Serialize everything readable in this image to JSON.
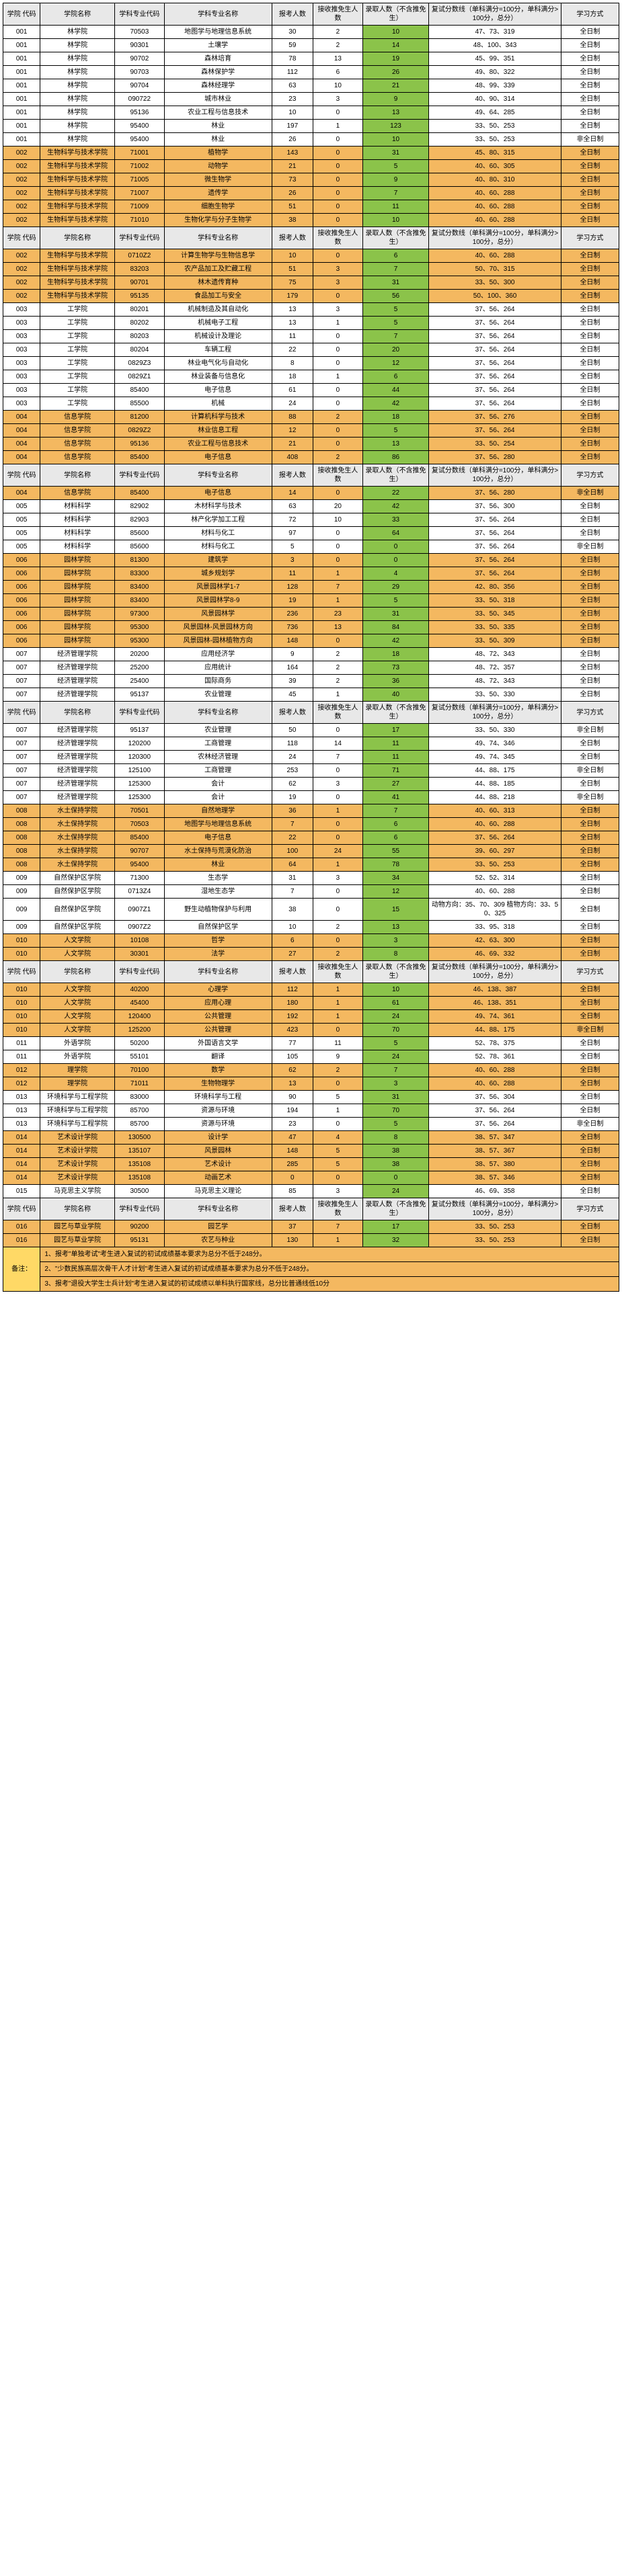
{
  "headers": {
    "col1": "学院 代码",
    "col2": "学院名称",
    "col3": "学科专业代码",
    "col4": "学科专业名称",
    "col5": "报考人数",
    "col6": "接收推免生人数",
    "col7": "录取人数（不含推免生）",
    "col8": "复试分数线（单科满分=100分，单科满分>100分，总分）",
    "col9": "学习方式"
  },
  "rows": [
    [
      "001",
      "林学院",
      "70503",
      "地图学与地理信息系统",
      "30",
      "2",
      "10",
      "47、73、319",
      "全日制",
      "",
      "g",
      ""
    ],
    [
      "001",
      "林学院",
      "90301",
      "土壤学",
      "59",
      "2",
      "14",
      "48、100、343",
      "全日制",
      "",
      "g",
      ""
    ],
    [
      "001",
      "林学院",
      "90702",
      "森林培育",
      "78",
      "13",
      "19",
      "45、99、351",
      "全日制",
      "",
      "g",
      ""
    ],
    [
      "001",
      "林学院",
      "90703",
      "森林保护学",
      "112",
      "6",
      "26",
      "49、80、322",
      "全日制",
      "",
      "g",
      ""
    ],
    [
      "001",
      "林学院",
      "90704",
      "森林经理学",
      "63",
      "10",
      "21",
      "48、99、339",
      "全日制",
      "",
      "g",
      ""
    ],
    [
      "001",
      "林学院",
      "090722",
      "城市林业",
      "23",
      "3",
      "9",
      "40、90、314",
      "全日制",
      "",
      "g",
      ""
    ],
    [
      "001",
      "林学院",
      "95136",
      "农业工程与信息技术",
      "10",
      "0",
      "13",
      "49、64、285",
      "全日制",
      "",
      "g",
      ""
    ],
    [
      "001",
      "林学院",
      "95400",
      "林业",
      "197",
      "1",
      "123",
      "33、50、253",
      "全日制",
      "",
      "g",
      ""
    ],
    [
      "001",
      "林学院",
      "95400",
      "林业",
      "26",
      "0",
      "10",
      "33、50、253",
      "非全日制",
      "",
      "g",
      ""
    ],
    [
      "002",
      "生物科学与技术学院",
      "71001",
      "植物学",
      "143",
      "0",
      "31",
      "45、80、315",
      "全日制",
      "o",
      "g",
      "o"
    ],
    [
      "002",
      "生物科学与技术学院",
      "71002",
      "动物学",
      "21",
      "0",
      "5",
      "40、60、305",
      "全日制",
      "o",
      "g",
      "o"
    ],
    [
      "002",
      "生物科学与技术学院",
      "71005",
      "微生物学",
      "73",
      "0",
      "9",
      "40、80、310",
      "全日制",
      "o",
      "g",
      "o"
    ],
    [
      "002",
      "生物科学与技术学院",
      "71007",
      "遗传学",
      "26",
      "0",
      "7",
      "40、60、288",
      "全日制",
      "o",
      "g",
      "o"
    ],
    [
      "002",
      "生物科学与技术学院",
      "71009",
      "细胞生物学",
      "51",
      "0",
      "11",
      "40、60、288",
      "全日制",
      "o",
      "g",
      "o"
    ],
    [
      "002",
      "生物科学与技术学院",
      "71010",
      "生物化学与分子生物学",
      "38",
      "0",
      "10",
      "40、60、288",
      "全日制",
      "o",
      "g",
      "o"
    ],
    [
      "HEADER"
    ],
    [
      "002",
      "生物科学与技术学院",
      "0710Z2",
      "计算生物学与生物信息学",
      "10",
      "0",
      "6",
      "40、60、288",
      "全日制",
      "o",
      "g",
      "o"
    ],
    [
      "002",
      "生物科学与技术学院",
      "83203",
      "农产品加工及贮藏工程",
      "51",
      "3",
      "7",
      "50、70、315",
      "全日制",
      "o",
      "g",
      "o"
    ],
    [
      "002",
      "生物科学与技术学院",
      "90701",
      "林木遗传育种",
      "75",
      "3",
      "31",
      "33、50、300",
      "全日制",
      "o",
      "g",
      "o"
    ],
    [
      "002",
      "生物科学与技术学院",
      "95135",
      "食品加工与安全",
      "179",
      "0",
      "56",
      "50、100、360",
      "全日制",
      "o",
      "g",
      "o"
    ],
    [
      "003",
      "工学院",
      "80201",
      "机械制造及其自动化",
      "13",
      "3",
      "5",
      "37、56、264",
      "全日制",
      "",
      "g",
      ""
    ],
    [
      "003",
      "工学院",
      "80202",
      "机械电子工程",
      "13",
      "1",
      "5",
      "37、56、264",
      "全日制",
      "",
      "g",
      ""
    ],
    [
      "003",
      "工学院",
      "80203",
      "机械设计及理论",
      "11",
      "0",
      "7",
      "37、56、264",
      "全日制",
      "",
      "g",
      ""
    ],
    [
      "003",
      "工学院",
      "80204",
      "车辆工程",
      "22",
      "0",
      "20",
      "37、56、264",
      "全日制",
      "",
      "g",
      ""
    ],
    [
      "003",
      "工学院",
      "0829Z3",
      "林业电气化与自动化",
      "8",
      "0",
      "12",
      "37、56、264",
      "全日制",
      "",
      "g",
      ""
    ],
    [
      "003",
      "工学院",
      "0829Z1",
      "林业装备与信息化",
      "18",
      "1",
      "6",
      "37、56、264",
      "全日制",
      "",
      "g",
      ""
    ],
    [
      "003",
      "工学院",
      "85400",
      "电子信息",
      "61",
      "0",
      "44",
      "37、56、264",
      "全日制",
      "",
      "g",
      ""
    ],
    [
      "003",
      "工学院",
      "85500",
      "机械",
      "24",
      "0",
      "42",
      "37、56、264",
      "全日制",
      "",
      "g",
      ""
    ],
    [
      "004",
      "信息学院",
      "81200",
      "计算机科学与技术",
      "88",
      "2",
      "18",
      "37、56、276",
      "全日制",
      "o",
      "g",
      "o"
    ],
    [
      "004",
      "信息学院",
      "0829Z2",
      "林业信息工程",
      "12",
      "0",
      "5",
      "37、56、264",
      "全日制",
      "o",
      "g",
      "o"
    ],
    [
      "004",
      "信息学院",
      "95136",
      "农业工程与信息技术",
      "21",
      "0",
      "13",
      "33、50、254",
      "全日制",
      "o",
      "g",
      "o"
    ],
    [
      "004",
      "信息学院",
      "85400",
      "电子信息",
      "408",
      "2",
      "86",
      "37、56、280",
      "全日制",
      "o",
      "g",
      "o"
    ],
    [
      "HEADER"
    ],
    [
      "004",
      "信息学院",
      "85400",
      "电子信息",
      "14",
      "0",
      "22",
      "37、56、280",
      "非全日制",
      "o",
      "g",
      "o"
    ],
    [
      "005",
      "材料科学",
      "82902",
      "木材科学与技术",
      "63",
      "20",
      "42",
      "37、56、300",
      "全日制",
      "",
      "g",
      ""
    ],
    [
      "005",
      "材料科学",
      "82903",
      "林产化学加工工程",
      "72",
      "10",
      "33",
      "37、56、264",
      "全日制",
      "",
      "g",
      ""
    ],
    [
      "005",
      "材料科学",
      "85600",
      "材料与化工",
      "97",
      "0",
      "64",
      "37、56、264",
      "全日制",
      "",
      "g",
      ""
    ],
    [
      "005",
      "材料科学",
      "85600",
      "材料与化工",
      "5",
      "0",
      "0",
      "37、56、264",
      "非全日制",
      "",
      "g",
      ""
    ],
    [
      "006",
      "园林学院",
      "81300",
      "建筑学",
      "3",
      "0",
      "0",
      "37、56、264",
      "全日制",
      "o",
      "g",
      "o"
    ],
    [
      "006",
      "园林学院",
      "83300",
      "城乡规划学",
      "11",
      "1",
      "4",
      "37、56、264",
      "全日制",
      "o",
      "g",
      "o"
    ],
    [
      "006",
      "园林学院",
      "83400",
      "风景园林学1-7",
      "128",
      "7",
      "29",
      "42、80、356",
      "全日制",
      "o",
      "g",
      "o"
    ],
    [
      "006",
      "园林学院",
      "83400",
      "风景园林学8-9",
      "19",
      "1",
      "5",
      "33、50、318",
      "全日制",
      "o",
      "g",
      "o"
    ],
    [
      "006",
      "园林学院",
      "97300",
      "风景园林学",
      "236",
      "23",
      "31",
      "33、50、345",
      "全日制",
      "o",
      "g",
      "o"
    ],
    [
      "006",
      "园林学院",
      "95300",
      "风景园林-风景园林方向",
      "736",
      "13",
      "84",
      "33、50、335",
      "全日制",
      "o",
      "g",
      "o"
    ],
    [
      "006",
      "园林学院",
      "95300",
      "风景园林-园林植物方向",
      "148",
      "0",
      "42",
      "33、50、309",
      "全日制",
      "o",
      "g",
      "o"
    ],
    [
      "007",
      "经济管理学院",
      "20200",
      "应用经济学",
      "9",
      "2",
      "18",
      "48、72、343",
      "全日制",
      "",
      "g",
      ""
    ],
    [
      "007",
      "经济管理学院",
      "25200",
      "应用统计",
      "164",
      "2",
      "73",
      "48、72、357",
      "全日制",
      "",
      "g",
      ""
    ],
    [
      "007",
      "经济管理学院",
      "25400",
      "国际商务",
      "39",
      "2",
      "36",
      "48、72、343",
      "全日制",
      "",
      "g",
      ""
    ],
    [
      "007",
      "经济管理学院",
      "95137",
      "农业管理",
      "45",
      "1",
      "40",
      "33、50、330",
      "全日制",
      "",
      "g",
      ""
    ],
    [
      "HEADER"
    ],
    [
      "007",
      "经济管理学院",
      "95137",
      "农业管理",
      "50",
      "0",
      "17",
      "33、50、330",
      "非全日制",
      "",
      "g",
      ""
    ],
    [
      "007",
      "经济管理学院",
      "120200",
      "工商管理",
      "118",
      "14",
      "11",
      "49、74、346",
      "全日制",
      "",
      "g",
      ""
    ],
    [
      "007",
      "经济管理学院",
      "120300",
      "农林经济管理",
      "24",
      "7",
      "11",
      "49、74、345",
      "全日制",
      "",
      "g",
      ""
    ],
    [
      "007",
      "经济管理学院",
      "125100",
      "工商管理",
      "253",
      "0",
      "71",
      "44、88、175",
      "非全日制",
      "",
      "g",
      ""
    ],
    [
      "007",
      "经济管理学院",
      "125300",
      "会计",
      "62",
      "3",
      "27",
      "44、88、185",
      "全日制",
      "",
      "g",
      ""
    ],
    [
      "007",
      "经济管理学院",
      "125300",
      "会计",
      "19",
      "0",
      "41",
      "44、88、218",
      "非全日制",
      "",
      "g",
      ""
    ],
    [
      "008",
      "水土保持学院",
      "70501",
      "自然地理学",
      "36",
      "1",
      "7",
      "40、60、313",
      "全日制",
      "o",
      "g",
      "o"
    ],
    [
      "008",
      "水土保持学院",
      "70503",
      "地图学与地理信息系统",
      "7",
      "0",
      "6",
      "40、60、288",
      "全日制",
      "o",
      "g",
      "o"
    ],
    [
      "008",
      "水土保持学院",
      "85400",
      "电子信息",
      "22",
      "0",
      "6",
      "37、56、264",
      "全日制",
      "o",
      "g",
      "o"
    ],
    [
      "008",
      "水土保持学院",
      "90707",
      "水土保持与荒漠化防治",
      "100",
      "24",
      "55",
      "39、60、297",
      "全日制",
      "o",
      "g",
      "o"
    ],
    [
      "008",
      "水土保持学院",
      "95400",
      "林业",
      "64",
      "1",
      "78",
      "33、50、253",
      "全日制",
      "o",
      "g",
      "o"
    ],
    [
      "009",
      "自然保护区学院",
      "71300",
      "生态学",
      "31",
      "3",
      "34",
      "52、52、314",
      "全日制",
      "",
      "g",
      ""
    ],
    [
      "009",
      "自然保护区学院",
      "0713Z4",
      "湿地生态学",
      "7",
      "0",
      "12",
      "40、60、288",
      "全日制",
      "",
      "g",
      ""
    ],
    [
      "009",
      "自然保护区学院",
      "0907Z1",
      "野生动植物保护与利用",
      "38",
      "0",
      "15",
      "动物方向：35、70、309 植物方向：33、50、325",
      "全日制",
      "",
      "g",
      ""
    ],
    [
      "009",
      "自然保护区学院",
      "0907Z2",
      "自然保护区学",
      "10",
      "2",
      "13",
      "33、95、318",
      "全日制",
      "",
      "g",
      ""
    ],
    [
      "010",
      "人文学院",
      "10108",
      "哲学",
      "6",
      "0",
      "3",
      "42、63、300",
      "全日制",
      "o",
      "g",
      "o"
    ],
    [
      "010",
      "人文学院",
      "30301",
      "法学",
      "27",
      "2",
      "8",
      "46、69、332",
      "全日制",
      "o",
      "g",
      "o"
    ],
    [
      "HEADER"
    ],
    [
      "010",
      "人文学院",
      "40200",
      "心理学",
      "112",
      "1",
      "10",
      "46、138、387",
      "全日制",
      "o",
      "g",
      "o"
    ],
    [
      "010",
      "人文学院",
      "45400",
      "应用心理",
      "180",
      "1",
      "61",
      "46、138、351",
      "全日制",
      "o",
      "g",
      "o"
    ],
    [
      "010",
      "人文学院",
      "120400",
      "公共管理",
      "192",
      "1",
      "24",
      "49、74、361",
      "全日制",
      "o",
      "g",
      "o"
    ],
    [
      "010",
      "人文学院",
      "125200",
      "公共管理",
      "423",
      "0",
      "70",
      "44、88、175",
      "非全日制",
      "o",
      "g",
      "o"
    ],
    [
      "011",
      "外语学院",
      "50200",
      "外国语言文学",
      "77",
      "11",
      "5",
      "52、78、375",
      "全日制",
      "",
      "g",
      ""
    ],
    [
      "011",
      "外语学院",
      "55101",
      "翻译",
      "105",
      "9",
      "24",
      "52、78、361",
      "全日制",
      "",
      "g",
      ""
    ],
    [
      "012",
      "理学院",
      "70100",
      "数学",
      "62",
      "2",
      "7",
      "40、60、288",
      "全日制",
      "o",
      "g",
      "o"
    ],
    [
      "012",
      "理学院",
      "71011",
      "生物物理学",
      "13",
      "0",
      "3",
      "40、60、288",
      "全日制",
      "o",
      "g",
      "o"
    ],
    [
      "013",
      "环境科学与工程学院",
      "83000",
      "环境科学与工程",
      "90",
      "5",
      "31",
      "37、56、304",
      "全日制",
      "",
      "g",
      ""
    ],
    [
      "013",
      "环境科学与工程学院",
      "85700",
      "资源与环境",
      "194",
      "1",
      "70",
      "37、56、264",
      "全日制",
      "",
      "g",
      ""
    ],
    [
      "013",
      "环境科学与工程学院",
      "85700",
      "资源与环境",
      "23",
      "0",
      "5",
      "37、56、264",
      "非全日制",
      "",
      "g",
      ""
    ],
    [
      "014",
      "艺术设计学院",
      "130500",
      "设计学",
      "47",
      "4",
      "8",
      "38、57、347",
      "全日制",
      "o",
      "g",
      "o"
    ],
    [
      "014",
      "艺术设计学院",
      "135107",
      "风景园林",
      "148",
      "5",
      "38",
      "38、57、367",
      "全日制",
      "o",
      "g",
      "o"
    ],
    [
      "014",
      "艺术设计学院",
      "135108",
      "艺术设计",
      "285",
      "5",
      "38",
      "38、57、380",
      "全日制",
      "o",
      "g",
      "o"
    ],
    [
      "014",
      "艺术设计学院",
      "135108",
      "动画艺术",
      "0",
      "0",
      "0",
      "38、57、346",
      "全日制",
      "o",
      "g",
      "o"
    ],
    [
      "015",
      "马克思主义学院",
      "30500",
      "马克思主义理论",
      "85",
      "3",
      "24",
      "46、69、358",
      "全日制",
      "",
      "g",
      ""
    ],
    [
      "HEADER"
    ],
    [
      "016",
      "园艺与草业学院",
      "90200",
      "园艺学",
      "37",
      "7",
      "17",
      "33、50、253",
      "全日制",
      "o",
      "g",
      "o"
    ],
    [
      "016",
      "园艺与草业学院",
      "95131",
      "农艺与种业",
      "130",
      "1",
      "32",
      "33、50、253",
      "全日制",
      "o",
      "g",
      "o"
    ]
  ],
  "footer": {
    "label": "备注：",
    "note1": "1、报考\"单独考试\"考生进入复试的初试成绩基本要求为总分不低于248分。",
    "note2": "2、\"少数民族高层次骨干人才计划\"考生进入复试的初试成绩基本要求为总分不低于248分。",
    "note3": "3、报考\"退役大学生士兵计划\"考生进入复试的初试成绩以单科执行国家线，总分比普通线低10分"
  }
}
